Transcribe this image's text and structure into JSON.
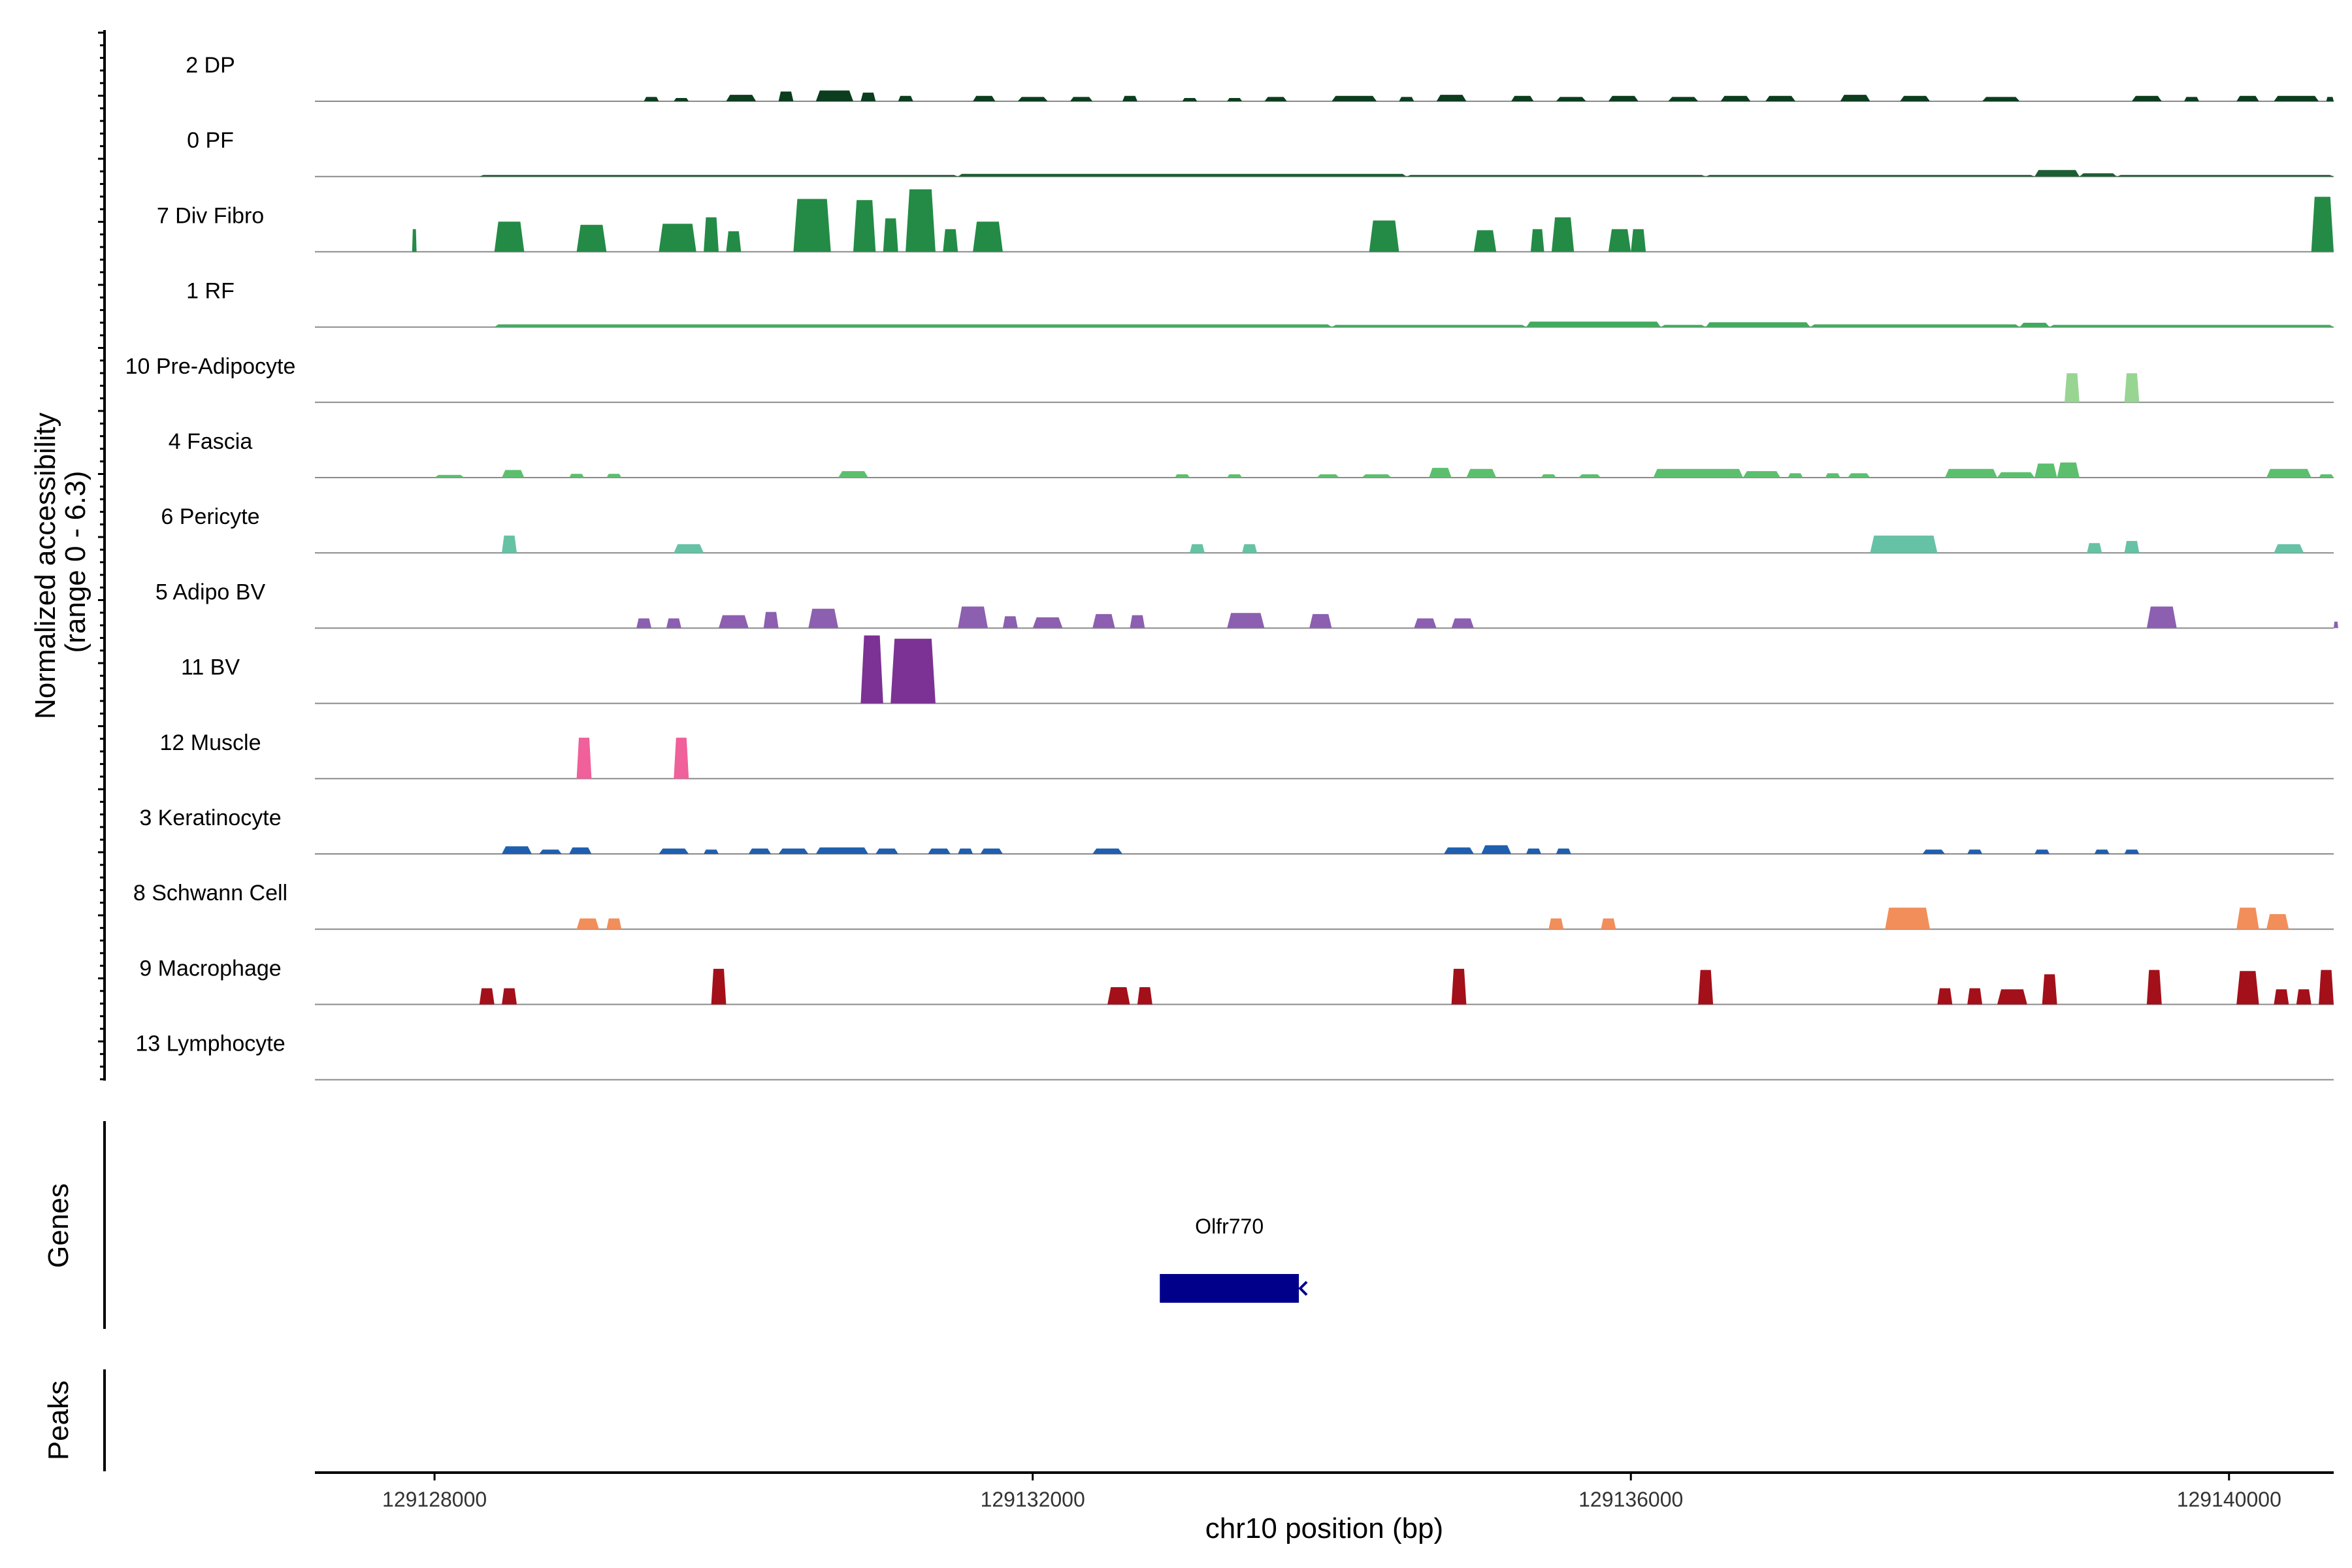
{
  "chart_data": {
    "type": "area",
    "title": "",
    "ylabel_line1": "Normalized accessibility",
    "ylabel_line2": "(range 0 - 6.3)",
    "ylim": [
      0,
      6.3
    ],
    "xlabel": "chr10 position (bp)",
    "xlim": [
      129127200,
      129140700
    ],
    "x_ticks": [
      129128000,
      129132000,
      129136000,
      129140000
    ],
    "x_tick_labels": [
      "129128000",
      "129132000",
      "129136000",
      "129140000"
    ],
    "genes_label": "Genes",
    "peaks_label": "Peaks",
    "genes": [
      {
        "name": "Olfr770",
        "start": 129132850,
        "end": 129133780,
        "strand": "-",
        "color": "#00008B"
      }
    ],
    "series": [
      {
        "name": "2 DP",
        "color": "#0B3D1E",
        "peaks": [
          [
            129129400,
            129129500,
            0.4
          ],
          [
            129129600,
            129129700,
            0.3
          ],
          [
            129129950,
            129130150,
            0.6
          ],
          [
            129130300,
            129130400,
            0.9
          ],
          [
            129130550,
            129130800,
            1.0
          ],
          [
            129130850,
            129130950,
            0.8
          ],
          [
            129131100,
            129131200,
            0.5
          ],
          [
            129131600,
            129131750,
            0.5
          ],
          [
            129131900,
            129132100,
            0.4
          ],
          [
            129132250,
            129132400,
            0.4
          ],
          [
            129132600,
            129132700,
            0.5
          ],
          [
            129133000,
            129133100,
            0.3
          ],
          [
            129133300,
            129133400,
            0.3
          ],
          [
            129133550,
            129133700,
            0.4
          ],
          [
            129134000,
            129134300,
            0.5
          ],
          [
            129134450,
            129134550,
            0.4
          ],
          [
            129134700,
            129134900,
            0.6
          ],
          [
            129135200,
            129135350,
            0.5
          ],
          [
            129135500,
            129135700,
            0.4
          ],
          [
            129135850,
            129136050,
            0.5
          ],
          [
            129136250,
            129136450,
            0.4
          ],
          [
            129136600,
            129136800,
            0.5
          ],
          [
            129136900,
            129137100,
            0.5
          ],
          [
            129137400,
            129137600,
            0.6
          ],
          [
            129137800,
            129138000,
            0.5
          ],
          [
            129138350,
            129138600,
            0.4
          ],
          [
            129139350,
            129139550,
            0.5
          ],
          [
            129139700,
            129139800,
            0.4
          ],
          [
            129140050,
            129140200,
            0.5
          ],
          [
            129140300,
            129140600,
            0.5
          ],
          [
            129140650,
            129140700,
            0.4
          ]
        ]
      },
      {
        "name": "0 PF",
        "color": "#1B5E33",
        "peaks": [
          [
            129128300,
            129131500,
            0.15
          ],
          [
            129131500,
            129134500,
            0.25
          ],
          [
            129134500,
            129136500,
            0.15
          ],
          [
            129136500,
            129138700,
            0.15
          ],
          [
            129138700,
            129139000,
            0.6
          ],
          [
            129139000,
            129139250,
            0.3
          ],
          [
            129139250,
            129140700,
            0.15
          ]
        ]
      },
      {
        "name": "7 Div Fibro",
        "color": "#238B45",
        "peaks": [
          [
            129127850,
            129127880,
            2.1
          ],
          [
            129128400,
            129128600,
            2.8
          ],
          [
            129128950,
            129129150,
            2.5
          ],
          [
            129129500,
            129129750,
            2.6
          ],
          [
            129129800,
            129129900,
            3.2
          ],
          [
            129129950,
            129130050,
            1.9
          ],
          [
            129130400,
            129130650,
            4.9
          ],
          [
            129130800,
            129130950,
            4.8
          ],
          [
            129131000,
            129131100,
            3.1
          ],
          [
            129131150,
            129131350,
            5.8
          ],
          [
            129131400,
            129131500,
            2.1
          ],
          [
            129131600,
            129131800,
            2.8
          ],
          [
            129134250,
            129134450,
            2.9
          ],
          [
            129134950,
            129135100,
            2.0
          ],
          [
            129135330,
            129135420,
            2.1
          ],
          [
            129135470,
            129135620,
            3.2
          ],
          [
            129135850,
            129136000,
            2.1
          ],
          [
            129136000,
            129136100,
            2.1
          ],
          [
            129140550,
            129140700,
            5.1
          ]
        ]
      },
      {
        "name": "1 RF",
        "color": "#41AB5D",
        "peaks": [
          [
            129128400,
            129134000,
            0.25
          ],
          [
            129134000,
            129135300,
            0.2
          ],
          [
            129135300,
            129136200,
            0.5
          ],
          [
            129136200,
            129136500,
            0.2
          ],
          [
            129136500,
            129137200,
            0.45
          ],
          [
            129137200,
            129138600,
            0.25
          ],
          [
            129138600,
            129138800,
            0.4
          ],
          [
            129138800,
            129140700,
            0.2
          ]
        ]
      },
      {
        "name": "10 Pre-Adipocyte",
        "color": "#98D593",
        "peaks": [
          [
            129138900,
            129139000,
            2.7
          ],
          [
            129139300,
            129139400,
            2.7
          ]
        ]
      },
      {
        "name": "4 Fascia",
        "color": "#5CBF6E",
        "peaks": [
          [
            129128000,
            129128200,
            0.25
          ],
          [
            129128450,
            129128600,
            0.7
          ],
          [
            129128900,
            129129000,
            0.35
          ],
          [
            129129150,
            129129250,
            0.35
          ],
          [
            129130700,
            129130900,
            0.6
          ],
          [
            129132950,
            129133050,
            0.3
          ],
          [
            129133300,
            129133400,
            0.3
          ],
          [
            129133900,
            129134050,
            0.3
          ],
          [
            129134200,
            129134400,
            0.3
          ],
          [
            129134650,
            129134800,
            0.9
          ],
          [
            129134900,
            129135100,
            0.8
          ],
          [
            129135400,
            129135500,
            0.3
          ],
          [
            129135650,
            129135800,
            0.3
          ],
          [
            129136150,
            129136750,
            0.8
          ],
          [
            129136750,
            129137000,
            0.6
          ],
          [
            129137050,
            129137150,
            0.4
          ],
          [
            129137300,
            129137400,
            0.4
          ],
          [
            129137450,
            129137600,
            0.4
          ],
          [
            129138100,
            129138450,
            0.8
          ],
          [
            129138450,
            129138700,
            0.5
          ],
          [
            129138700,
            129138850,
            1.3
          ],
          [
            129138850,
            129139000,
            1.4
          ],
          [
            129140250,
            129140550,
            0.8
          ],
          [
            129140600,
            129140700,
            0.3
          ]
        ]
      },
      {
        "name": "6 Pericyte",
        "color": "#66C2A5",
        "peaks": [
          [
            129128450,
            129128550,
            1.6
          ],
          [
            129129600,
            129129800,
            0.8
          ],
          [
            129133050,
            129133150,
            0.8
          ],
          [
            129133400,
            129133500,
            0.8
          ],
          [
            129137600,
            129138050,
            1.6
          ],
          [
            129139050,
            129139150,
            0.9
          ],
          [
            129139300,
            129139400,
            1.1
          ],
          [
            129140300,
            129140500,
            0.8
          ]
        ]
      },
      {
        "name": "5 Adipo BV",
        "color": "#8C5FB0",
        "peaks": [
          [
            129129350,
            129129450,
            0.9
          ],
          [
            129129550,
            129129650,
            0.9
          ],
          [
            129129900,
            129130100,
            1.2
          ],
          [
            129130200,
            129130300,
            1.5
          ],
          [
            129130500,
            129130700,
            1.8
          ],
          [
            129131500,
            129131700,
            2.0
          ],
          [
            129131800,
            129131900,
            1.1
          ],
          [
            129132000,
            129132200,
            1.0
          ],
          [
            129132400,
            129132550,
            1.3
          ],
          [
            129132650,
            129132750,
            1.2
          ],
          [
            129133300,
            129133550,
            1.4
          ],
          [
            129133850,
            129134000,
            1.3
          ],
          [
            129134550,
            129134700,
            0.9
          ],
          [
            129134800,
            129134950,
            0.9
          ],
          [
            129139450,
            129139650,
            2.0
          ],
          [
            129140700,
            129140730,
            0.6
          ]
        ]
      },
      {
        "name": "11 BV",
        "color": "#7B3294",
        "peaks": [
          [
            129130850,
            129131000,
            6.3
          ],
          [
            129131050,
            129131350,
            6.0
          ]
        ]
      },
      {
        "name": "12 Muscle",
        "color": "#F0609A",
        "peaks": [
          [
            129128950,
            129129050,
            3.8
          ],
          [
            129129600,
            129129700,
            3.8
          ]
        ]
      },
      {
        "name": "3 Keratinocyte",
        "color": "#1F5FAF",
        "peaks": [
          [
            129128450,
            129128650,
            0.7
          ],
          [
            129128700,
            129128850,
            0.4
          ],
          [
            129128900,
            129129050,
            0.6
          ],
          [
            129129500,
            129129700,
            0.5
          ],
          [
            129129800,
            129129900,
            0.4
          ],
          [
            129130100,
            129130250,
            0.5
          ],
          [
            129130300,
            129130500,
            0.5
          ],
          [
            129130550,
            129130900,
            0.6
          ],
          [
            129130950,
            129131100,
            0.5
          ],
          [
            129131300,
            129131450,
            0.5
          ],
          [
            129131500,
            129131600,
            0.5
          ],
          [
            129131650,
            129131800,
            0.5
          ],
          [
            129132400,
            129132600,
            0.5
          ],
          [
            129134750,
            129134950,
            0.6
          ],
          [
            129135000,
            129135200,
            0.8
          ],
          [
            129135300,
            129135400,
            0.5
          ],
          [
            129135500,
            129135600,
            0.5
          ],
          [
            129137950,
            129138100,
            0.4
          ],
          [
            129138250,
            129138350,
            0.4
          ],
          [
            129138700,
            129138800,
            0.4
          ],
          [
            129139100,
            129139200,
            0.4
          ],
          [
            129139300,
            129139400,
            0.4
          ]
        ]
      },
      {
        "name": "8 Schwann Cell",
        "color": "#F28E5A",
        "peaks": [
          [
            129128950,
            129129100,
            1.0
          ],
          [
            129129150,
            129129250,
            1.0
          ],
          [
            129135450,
            129135550,
            1.0
          ],
          [
            129135800,
            129135900,
            1.0
          ],
          [
            129137700,
            129138000,
            2.0
          ],
          [
            129140050,
            129140200,
            2.0
          ],
          [
            129140250,
            129140400,
            1.4
          ]
        ]
      },
      {
        "name": "9 Macrophage",
        "color": "#A3101A",
        "peaks": [
          [
            129128300,
            129128400,
            1.5
          ],
          [
            129128450,
            129128550,
            1.5
          ],
          [
            129129850,
            129129950,
            3.3
          ],
          [
            129132500,
            129132650,
            1.6
          ],
          [
            129132700,
            129132800,
            1.6
          ],
          [
            129134800,
            129134900,
            3.3
          ],
          [
            129136450,
            129136550,
            3.2
          ],
          [
            129138050,
            129138150,
            1.5
          ],
          [
            129138250,
            129138350,
            1.5
          ],
          [
            129138450,
            129138650,
            1.4
          ],
          [
            129138750,
            129138850,
            2.8
          ],
          [
            129139450,
            129139550,
            3.2
          ],
          [
            129140050,
            129140200,
            3.1
          ],
          [
            129140300,
            129140400,
            1.4
          ],
          [
            129140450,
            129140550,
            1.4
          ],
          [
            129140600,
            129140700,
            3.2
          ]
        ]
      },
      {
        "name": "13 Lymphocyte",
        "color": "#3A3A3A",
        "peaks": []
      }
    ]
  }
}
